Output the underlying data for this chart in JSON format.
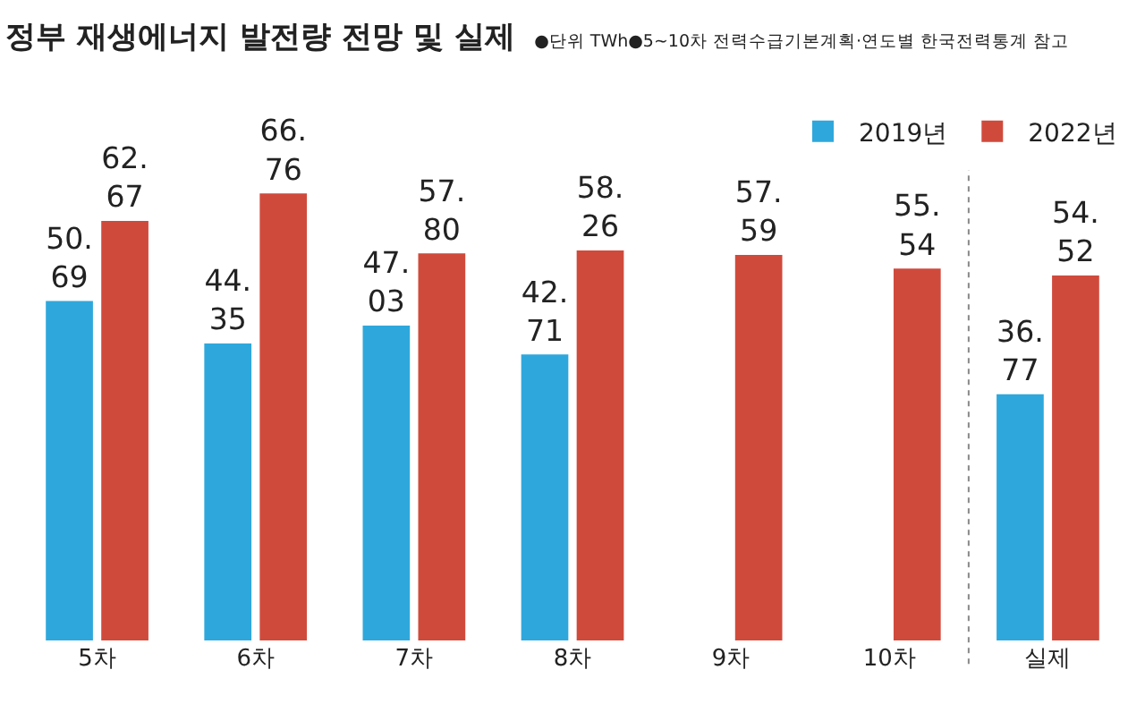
{
  "chart_data": {
    "type": "bar",
    "title": "정부 재생에너지 발전량 전망 및 실제",
    "subtitle": "●단위 TWh●5~10차 전력수급기본계획·연도별 한국전력통계 참고",
    "categories": [
      "5차",
      "6차",
      "7차",
      "8차",
      "9차",
      "10차",
      "실제"
    ],
    "series": [
      {
        "name": "2019년",
        "color": "#2ea8dc",
        "values": [
          50.69,
          44.35,
          47.03,
          42.71,
          null,
          null,
          36.77
        ],
        "value_labels": [
          "50.69",
          "44.35",
          "47.03",
          "42.71",
          null,
          null,
          "36.77"
        ]
      },
      {
        "name": "2022년",
        "color": "#d04a3c",
        "values": [
          62.67,
          66.76,
          57.8,
          58.26,
          57.59,
          55.54,
          54.52
        ],
        "value_labels": [
          "62.67",
          "66.76",
          "57.80",
          "58.26",
          "57.59",
          "55.54",
          "54.52"
        ]
      }
    ],
    "legend": "top right",
    "grid": false
  }
}
